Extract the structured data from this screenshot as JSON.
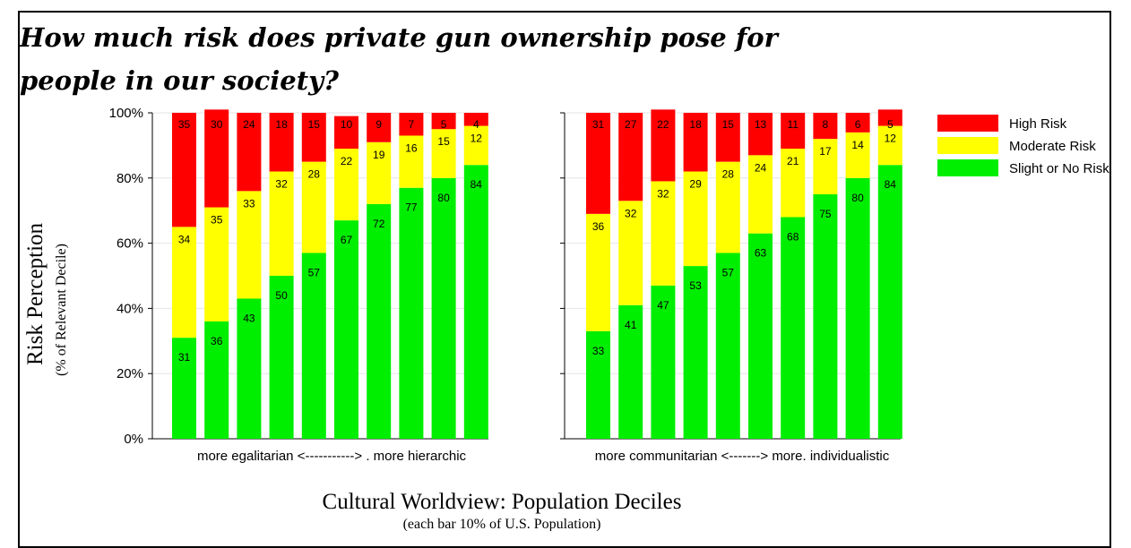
{
  "chart_data": {
    "type": "bar",
    "stacked": true,
    "title": "How much risk does private gun ownership pose for people in our society?",
    "ylabel": "Risk Perception",
    "ylabel_sub": "(% of Relevant Decile)",
    "xlabel": "Cultural Worldview: Population Deciles",
    "xlabel_sub": "(each bar 10% of U.S. Population)",
    "ylim": [
      0,
      100
    ],
    "yticks": [
      "0%",
      "20%",
      "40%",
      "60%",
      "80%",
      "100%"
    ],
    "legend_position": "right",
    "legend": [
      {
        "name": "High Risk",
        "color": "#ff0000"
      },
      {
        "name": "Moderate Risk",
        "color": "#ffff00"
      },
      {
        "name": "Slight or No Risk",
        "color": "#00ee00"
      }
    ],
    "panels": [
      {
        "category_label": "more egalitarian <-----------> . more hierarchic",
        "series": [
          {
            "name": "Slight or No Risk",
            "values": [
              31,
              36,
              43,
              50,
              57,
              67,
              72,
              77,
              80,
              84
            ]
          },
          {
            "name": "Moderate Risk",
            "values": [
              34,
              35,
              33,
              32,
              28,
              22,
              19,
              16,
              15,
              12
            ]
          },
          {
            "name": "High Risk",
            "values": [
              35,
              30,
              24,
              18,
              15,
              10,
              9,
              7,
              5,
              4
            ]
          }
        ]
      },
      {
        "category_label": "more communitarian <-------> more. individualistic",
        "series": [
          {
            "name": "Slight or No Risk",
            "values": [
              33,
              41,
              47,
              53,
              57,
              63,
              68,
              75,
              80,
              84
            ]
          },
          {
            "name": "Moderate Risk",
            "values": [
              36,
              32,
              32,
              29,
              28,
              24,
              21,
              17,
              14,
              12
            ]
          },
          {
            "name": "High Risk",
            "values": [
              31,
              27,
              22,
              18,
              15,
              13,
              11,
              8,
              6,
              5
            ]
          }
        ]
      }
    ],
    "grid": true
  }
}
